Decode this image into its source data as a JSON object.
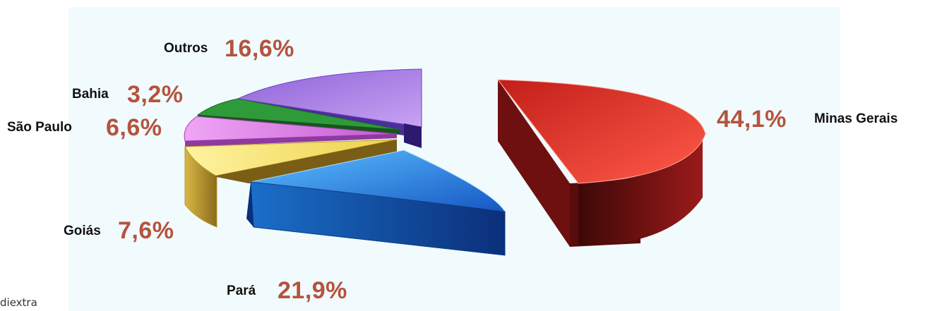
{
  "chart_data": {
    "type": "pie",
    "title": "",
    "slices": [
      {
        "label": "Minas Gerais",
        "value": 44.1,
        "pct_text": "44,1%",
        "color": "#e8362b"
      },
      {
        "label": "Pará",
        "value": 21.9,
        "pct_text": "21,9%",
        "color": "#2f7fe0"
      },
      {
        "label": "Goiás",
        "value": 7.6,
        "pct_text": "7,6%",
        "color": "#f2dc6a"
      },
      {
        "label": "São Paulo",
        "value": 6.6,
        "pct_text": "6,6%",
        "color": "#d77fe0"
      },
      {
        "label": "Bahia",
        "value": 3.2,
        "pct_text": "3,2%",
        "color": "#2f9a3a"
      },
      {
        "label": "Outros",
        "value": 16.6,
        "pct_text": "16,6%",
        "color": "#a77ee0"
      }
    ],
    "exploded": "Minas Gerais",
    "three_d": true,
    "legend": "none"
  },
  "watermark": "diextra",
  "colors": {
    "background": "#f1fbfe",
    "percent_text": "#b5533e"
  }
}
